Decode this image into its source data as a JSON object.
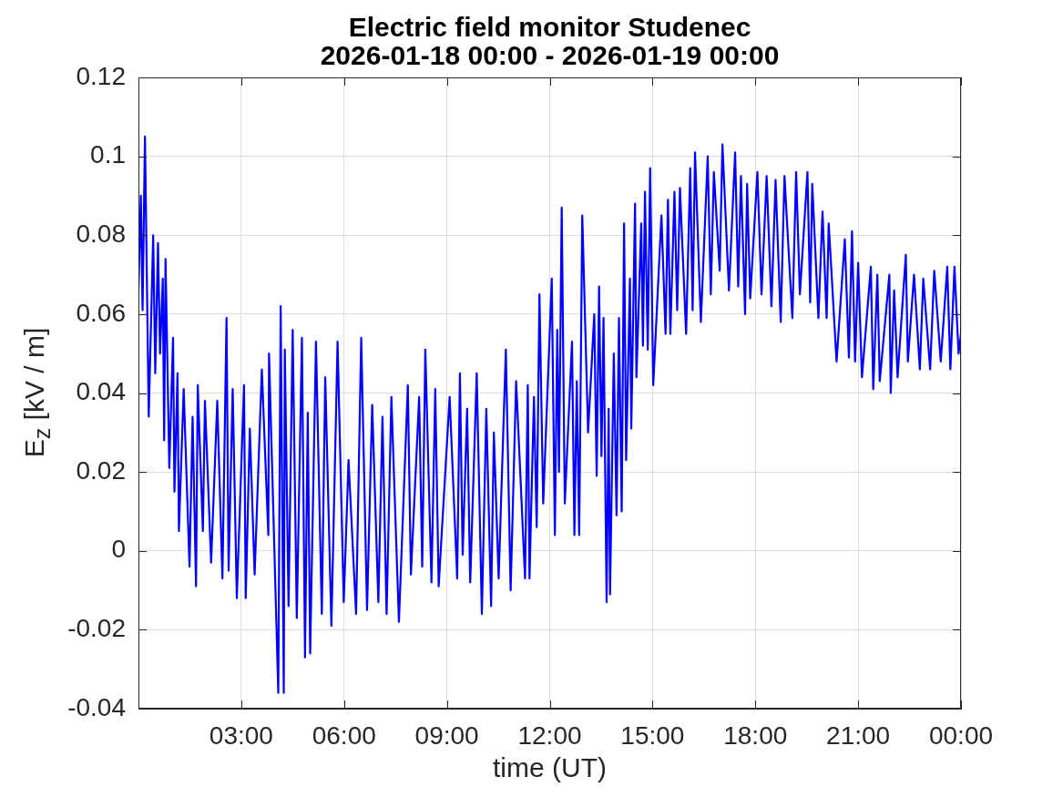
{
  "chart_data": {
    "type": "line",
    "title": "Electric field monitor Studenec",
    "subtitle": "2026-01-18 00:00 - 2026-01-19 00:00",
    "xlabel": "time (UT)",
    "ylabel": "E$_{z}$ [kV / m]",
    "xlim": [
      0,
      24
    ],
    "xticks": [
      {
        "value": 3,
        "label": "03:00"
      },
      {
        "value": 6,
        "label": "06:00"
      },
      {
        "value": 9,
        "label": "09:00"
      },
      {
        "value": 12,
        "label": "12:00"
      },
      {
        "value": 15,
        "label": "15:00"
      },
      {
        "value": 18,
        "label": "18:00"
      },
      {
        "value": 21,
        "label": "21:00"
      },
      {
        "value": 24,
        "label": "00:00"
      }
    ],
    "ylim": [
      -0.04,
      0.12
    ],
    "yticks": [
      -0.04,
      -0.02,
      0,
      0.02,
      0.04,
      0.06,
      0.08,
      0.1,
      0.12
    ],
    "grid": true,
    "legend": false,
    "series": [
      {
        "color": "#0000ff",
        "x": [
          0,
          0.07,
          0.12,
          0.19,
          0.3,
          0.43,
          0.49,
          0.57,
          0.63,
          0.71,
          0.75,
          0.79,
          0.9,
          1.01,
          1.05,
          1.14,
          1.18,
          1.32,
          1.49,
          1.58,
          1.68,
          1.73,
          1.88,
          1.94,
          2.12,
          2.3,
          2.45,
          2.57,
          2.63,
          2.75,
          2.87,
          3.08,
          3.13,
          3.25,
          3.39,
          3.6,
          3.79,
          3.81,
          4.08,
          4.15,
          4.24,
          4.27,
          4.38,
          4.5,
          4.62,
          4.77,
          4.86,
          4.94,
          5.01,
          5.18,
          5.35,
          5.45,
          5.63,
          5.81,
          5.99,
          6.13,
          6.35,
          6.5,
          6.67,
          6.82,
          7,
          7.12,
          7.24,
          7.38,
          7.6,
          7.86,
          7.95,
          8.19,
          8.28,
          8.37,
          8.55,
          8.66,
          8.76,
          9.08,
          9.3,
          9.38,
          9.46,
          9.59,
          9.68,
          9.87,
          10.02,
          10.15,
          10.29,
          10.37,
          10.51,
          10.72,
          10.86,
          11.02,
          11.28,
          11.36,
          11.41,
          11.54,
          11.62,
          11.7,
          11.81,
          12.06,
          12.15,
          12.22,
          12.27,
          12.35,
          12.44,
          12.65,
          12.72,
          12.79,
          12.86,
          12.95,
          13.12,
          13.3,
          13.37,
          13.44,
          13.51,
          13.57,
          13.66,
          13.72,
          13.76,
          13.87,
          13.95,
          14.02,
          14.1,
          14.17,
          14.23,
          14.34,
          14.38,
          14.49,
          14.53,
          14.67,
          14.72,
          14.78,
          14.86,
          14.93,
          15.02,
          15.26,
          15.38,
          15.45,
          15.52,
          15.64,
          15.72,
          15.8,
          15.98,
          16.1,
          16.17,
          16.24,
          16.41,
          16.61,
          16.7,
          16.79,
          16.96,
          17.04,
          17.23,
          17.41,
          17.5,
          17.58,
          17.7,
          17.76,
          17.85,
          18.06,
          18.18,
          18.33,
          18.47,
          18.59,
          18.74,
          18.85,
          19.08,
          19.19,
          19.3,
          19.52,
          19.6,
          19.66,
          19.84,
          19.96,
          20.08,
          20.14,
          20.37,
          20.61,
          20.73,
          20.82,
          20.91,
          21,
          21.11,
          21.37,
          21.44,
          21.56,
          21.63,
          21.91,
          21.95,
          22.05,
          22.15,
          22.39,
          22.45,
          22.63,
          22.8,
          22.9,
          23.1,
          23.22,
          23.41,
          23.6,
          23.69,
          23.81,
          23.93,
          24
        ],
        "values": [
          0.066,
          0.09,
          0.061,
          0.105,
          0.034,
          0.08,
          0.045,
          0.078,
          0.05,
          0.069,
          0.028,
          0.074,
          0.021,
          0.054,
          0.015,
          0.045,
          0.005,
          0.041,
          -0.004,
          0.034,
          -0.009,
          0.042,
          0.005,
          0.038,
          -0.003,
          0.038,
          -0.007,
          0.059,
          -0.005,
          0.041,
          -0.012,
          0.042,
          -0.012,
          0.031,
          -0.006,
          0.046,
          0.004,
          0.05,
          -0.036,
          0.062,
          -0.036,
          0.051,
          -0.014,
          0.056,
          -0.017,
          0.054,
          -0.027,
          0.035,
          -0.026,
          0.053,
          -0.016,
          0.044,
          -0.019,
          0.053,
          -0.013,
          0.023,
          -0.016,
          0.054,
          -0.015,
          0.037,
          -0.013,
          0.034,
          -0.016,
          0.039,
          -0.018,
          0.042,
          -0.006,
          0.039,
          -0.004,
          0.051,
          -0.008,
          0.041,
          -0.009,
          0.039,
          -0.007,
          0.045,
          -0.001,
          0.036,
          -0.008,
          0.045,
          -0.016,
          0.036,
          -0.014,
          0.03,
          -0.007,
          0.051,
          -0.01,
          0.043,
          -0.007,
          0.042,
          -0.007,
          0.039,
          0.006,
          0.065,
          0.012,
          0.069,
          0.004,
          0.056,
          0.02,
          0.087,
          0.012,
          0.053,
          0.004,
          0.043,
          0.004,
          0.085,
          0.03,
          0.06,
          0.019,
          0.067,
          0.024,
          0.059,
          -0.013,
          0.036,
          -0.011,
          0.05,
          0.009,
          0.059,
          0.01,
          0.083,
          0.023,
          0.069,
          0.031,
          0.088,
          0.044,
          0.083,
          0.052,
          0.091,
          0.051,
          0.097,
          0.042,
          0.085,
          0.055,
          0.089,
          0.055,
          0.091,
          0.061,
          0.092,
          0.055,
          0.097,
          0.061,
          0.101,
          0.058,
          0.1,
          0.065,
          0.096,
          0.071,
          0.103,
          0.066,
          0.101,
          0.067,
          0.095,
          0.06,
          0.093,
          0.064,
          0.096,
          0.065,
          0.095,
          0.062,
          0.094,
          0.058,
          0.095,
          0.059,
          0.096,
          0.065,
          0.096,
          0.063,
          0.093,
          0.059,
          0.086,
          0.059,
          0.083,
          0.048,
          0.079,
          0.049,
          0.081,
          0.048,
          0.073,
          0.044,
          0.072,
          0.041,
          0.07,
          0.043,
          0.07,
          0.04,
          0.066,
          0.044,
          0.075,
          0.048,
          0.07,
          0.046,
          0.069,
          0.046,
          0.071,
          0.048,
          0.072,
          0.046,
          0.072,
          0.05,
          0.055
        ]
      }
    ]
  }
}
